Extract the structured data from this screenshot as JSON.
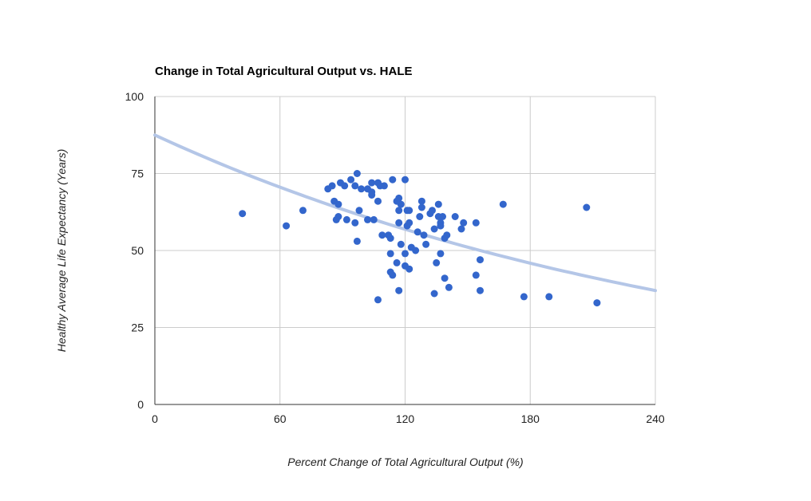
{
  "chart_data": {
    "type": "scatter",
    "title": "Change in Total Agricultural Output vs. HALE",
    "xlabel": "Percent Change of Total Agricultural Output (%)",
    "ylabel": "Healthy Average Life Expectancy (Years)",
    "xlim": [
      0,
      240
    ],
    "ylim": [
      0,
      100
    ],
    "xticks": [
      0,
      60,
      120,
      180,
      240
    ],
    "yticks": [
      0,
      25,
      50,
      75,
      100
    ],
    "grid": true,
    "legend": "none",
    "colors": {
      "points": "#3366cc",
      "trendline": "#b4c6e7"
    },
    "trendline": {
      "type": "exponential",
      "x": [
        0,
        240
      ],
      "y": [
        87.5,
        37
      ]
    },
    "points": [
      [
        42,
        62
      ],
      [
        63,
        58
      ],
      [
        71,
        63
      ],
      [
        83,
        70
      ],
      [
        85,
        71
      ],
      [
        86,
        66
      ],
      [
        87,
        60
      ],
      [
        88,
        61
      ],
      [
        88,
        65
      ],
      [
        89,
        72
      ],
      [
        91,
        71
      ],
      [
        92,
        60
      ],
      [
        94,
        73
      ],
      [
        96,
        71
      ],
      [
        96,
        59
      ],
      [
        97,
        53
      ],
      [
        97,
        75
      ],
      [
        98,
        63
      ],
      [
        99,
        70
      ],
      [
        102,
        60
      ],
      [
        102,
        70
      ],
      [
        104,
        72
      ],
      [
        104,
        69
      ],
      [
        104,
        68
      ],
      [
        105,
        60
      ],
      [
        107,
        72
      ],
      [
        107,
        66
      ],
      [
        107,
        34
      ],
      [
        108,
        71
      ],
      [
        109,
        55
      ],
      [
        110,
        71
      ],
      [
        112,
        55
      ],
      [
        113,
        54
      ],
      [
        113,
        43
      ],
      [
        113,
        49
      ],
      [
        114,
        73
      ],
      [
        114,
        42
      ],
      [
        116,
        66
      ],
      [
        116,
        46
      ],
      [
        117,
        67
      ],
      [
        117,
        63
      ],
      [
        117,
        59
      ],
      [
        117,
        37
      ],
      [
        118,
        65
      ],
      [
        118,
        52
      ],
      [
        120,
        73
      ],
      [
        120,
        49
      ],
      [
        120,
        45
      ],
      [
        121,
        63
      ],
      [
        121,
        58
      ],
      [
        122,
        59
      ],
      [
        122,
        63
      ],
      [
        122,
        44
      ],
      [
        123,
        51
      ],
      [
        125,
        50
      ],
      [
        126,
        56
      ],
      [
        127,
        61
      ],
      [
        128,
        64
      ],
      [
        128,
        66
      ],
      [
        129,
        55
      ],
      [
        130,
        52
      ],
      [
        132,
        62
      ],
      [
        133,
        63
      ],
      [
        134,
        57
      ],
      [
        134,
        36
      ],
      [
        135,
        46
      ],
      [
        136,
        61
      ],
      [
        136,
        65
      ],
      [
        137,
        59
      ],
      [
        137,
        58
      ],
      [
        137,
        49
      ],
      [
        138,
        61
      ],
      [
        139,
        54
      ],
      [
        139,
        41
      ],
      [
        140,
        55
      ],
      [
        141,
        38
      ],
      [
        144,
        61
      ],
      [
        147,
        57
      ],
      [
        148,
        59
      ],
      [
        154,
        42
      ],
      [
        154,
        59
      ],
      [
        156,
        47
      ],
      [
        156,
        37
      ],
      [
        167,
        65
      ],
      [
        177,
        35
      ],
      [
        189,
        35
      ],
      [
        207,
        64
      ],
      [
        212,
        33
      ]
    ]
  }
}
